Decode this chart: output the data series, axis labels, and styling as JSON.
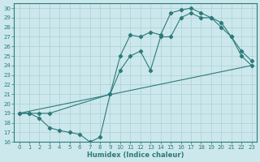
{
  "xlabel": "Humidex (Indice chaleur)",
  "bg_color": "#cce8ec",
  "grid_color": "#b0d4d8",
  "line_color": "#2d7a7a",
  "xlim": [
    -0.5,
    23.5
  ],
  "ylim": [
    16,
    30.5
  ],
  "xticks": [
    0,
    1,
    2,
    3,
    4,
    5,
    6,
    7,
    8,
    9,
    10,
    11,
    12,
    13,
    14,
    15,
    16,
    17,
    18,
    19,
    20,
    21,
    22,
    23
  ],
  "yticks": [
    16,
    17,
    18,
    19,
    20,
    21,
    22,
    23,
    24,
    25,
    26,
    27,
    28,
    29,
    30
  ],
  "line1_x": [
    0,
    1,
    2,
    3,
    4,
    5,
    6,
    7,
    8,
    9,
    10,
    11,
    12,
    13,
    14,
    15,
    16,
    17,
    18,
    19,
    20,
    21,
    22,
    23
  ],
  "line1_y": [
    19,
    19,
    18.5,
    17.5,
    17.2,
    17,
    16.8,
    16,
    16.5,
    21,
    25,
    27.2,
    27,
    27.5,
    27.2,
    29.5,
    29.8,
    30,
    29.5,
    29,
    28.5,
    27,
    25.5,
    24.5
  ],
  "line2_x": [
    0,
    1,
    2,
    3,
    9,
    10,
    11,
    12,
    13,
    14,
    15,
    16,
    17,
    18,
    19,
    20,
    21,
    22,
    23
  ],
  "line2_y": [
    19,
    19,
    19,
    19,
    21,
    23.5,
    25,
    25.5,
    23.5,
    27,
    27,
    29,
    29.5,
    29,
    29,
    28,
    27,
    25,
    24
  ],
  "line3_x": [
    0,
    23
  ],
  "line3_y": [
    19,
    24
  ]
}
